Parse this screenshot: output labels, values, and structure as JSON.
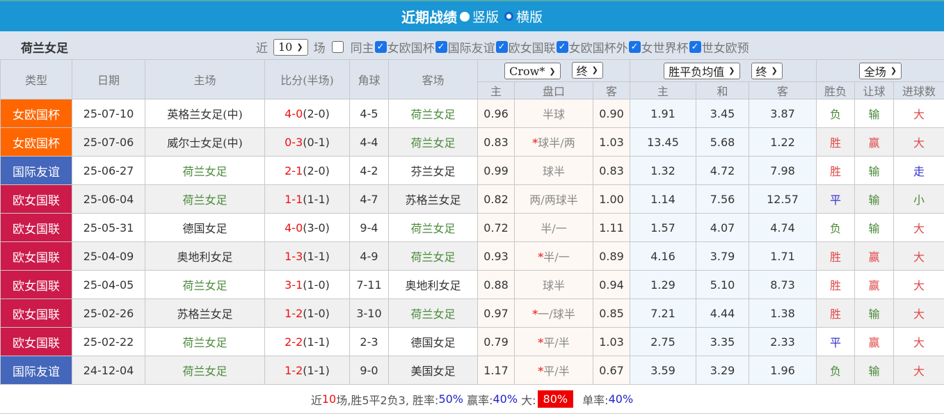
{
  "header": {
    "title": "近期战绩",
    "layout_vertical": "竖版",
    "layout_horizontal": "横版",
    "selected": "竖版"
  },
  "filter": {
    "team": "荷兰女足",
    "prefix": "近",
    "count": "10",
    "suffix": "场",
    "same_home": {
      "label": "同主",
      "checked": false
    },
    "competitions": [
      {
        "label": "女欧国杯",
        "checked": true
      },
      {
        "label": "国际友谊",
        "checked": true
      },
      {
        "label": "欧女国联",
        "checked": true
      },
      {
        "label": "女欧国杯外",
        "checked": true
      },
      {
        "label": "女世界杯",
        "checked": true
      },
      {
        "label": "世女欧预",
        "checked": true
      }
    ]
  },
  "columns": {
    "type": "类型",
    "date": "日期",
    "home": "主场",
    "score": "比分(半场)",
    "corner": "角球",
    "away": "客场",
    "asia_company": "Crow*",
    "asia_stage": "终",
    "euro_type": "胜平负均值",
    "euro_stage": "终",
    "period": "全场",
    "asia_home": "主",
    "asia_line": "盘口",
    "asia_away": "客",
    "euro_home": "主",
    "euro_draw": "和",
    "euro_away": "客",
    "result": "胜负",
    "handicap": "让球",
    "goals": "进球数"
  },
  "type_colors": {
    "女欧国杯": "#ff6600",
    "国际友谊": "#4466bb",
    "欧女国联": "#cc1a4a"
  },
  "result_colors": {
    "胜": "#e04848",
    "赢": "#e04848",
    "大": "#e04848",
    "负": "#4a8a3a",
    "输": "#4a8a3a",
    "小": "#4a8a3a",
    "平": "#3333cc",
    "走": "#3333cc"
  },
  "rows": [
    {
      "type": "女欧国杯",
      "date": "25-07-10",
      "home": "英格兰女足(中)",
      "score_ft": "4-0",
      "score_ht": "(2-0)",
      "corner": "4-5",
      "away": "荷兰女足",
      "a_home": "0.96",
      "a_star": "",
      "a_line": "半球",
      "a_away": "0.90",
      "e_home": "1.91",
      "e_draw": "3.45",
      "e_away": "3.87",
      "result": "负",
      "handicap": "输",
      "goals": "大"
    },
    {
      "type": "女欧国杯",
      "date": "25-07-06",
      "home": "威尔士女足(中)",
      "score_ft": "0-3",
      "score_ht": "(0-1)",
      "corner": "4-4",
      "away": "荷兰女足",
      "a_home": "0.83",
      "a_star": "*",
      "a_line": "球半/两",
      "a_away": "1.03",
      "e_home": "13.45",
      "e_draw": "5.68",
      "e_away": "1.22",
      "result": "胜",
      "handicap": "赢",
      "goals": "大"
    },
    {
      "type": "国际友谊",
      "date": "25-06-27",
      "home": "荷兰女足",
      "score_ft": "2-1",
      "score_ht": "(2-0)",
      "corner": "4-2",
      "away": "芬兰女足",
      "a_home": "0.99",
      "a_star": "",
      "a_line": "球半",
      "a_away": "0.83",
      "e_home": "1.32",
      "e_draw": "4.72",
      "e_away": "7.98",
      "result": "胜",
      "handicap": "输",
      "goals": "走"
    },
    {
      "type": "欧女国联",
      "date": "25-06-04",
      "home": "荷兰女足",
      "score_ft": "1-1",
      "score_ht": "(1-1)",
      "corner": "4-7",
      "away": "苏格兰女足",
      "a_home": "0.82",
      "a_star": "",
      "a_line": "两/两球半",
      "a_away": "1.00",
      "e_home": "1.14",
      "e_draw": "7.56",
      "e_away": "12.57",
      "result": "平",
      "handicap": "输",
      "goals": "小"
    },
    {
      "type": "欧女国联",
      "date": "25-05-31",
      "home": "德国女足",
      "score_ft": "4-0",
      "score_ht": "(3-0)",
      "corner": "9-4",
      "away": "荷兰女足",
      "a_home": "0.72",
      "a_star": "",
      "a_line": "半/一",
      "a_away": "1.11",
      "e_home": "1.57",
      "e_draw": "4.07",
      "e_away": "4.74",
      "result": "负",
      "handicap": "输",
      "goals": "大"
    },
    {
      "type": "欧女国联",
      "date": "25-04-09",
      "home": "奥地利女足",
      "score_ft": "1-3",
      "score_ht": "(1-1)",
      "corner": "4-9",
      "away": "荷兰女足",
      "a_home": "0.93",
      "a_star": "*",
      "a_line": "半/一",
      "a_away": "0.89",
      "e_home": "4.16",
      "e_draw": "3.79",
      "e_away": "1.71",
      "result": "胜",
      "handicap": "赢",
      "goals": "大"
    },
    {
      "type": "欧女国联",
      "date": "25-04-05",
      "home": "荷兰女足",
      "score_ft": "3-1",
      "score_ht": "(1-0)",
      "corner": "7-11",
      "away": "奥地利女足",
      "a_home": "0.88",
      "a_star": "",
      "a_line": "球半",
      "a_away": "0.94",
      "e_home": "1.29",
      "e_draw": "5.10",
      "e_away": "8.73",
      "result": "胜",
      "handicap": "赢",
      "goals": "大"
    },
    {
      "type": "欧女国联",
      "date": "25-02-26",
      "home": "苏格兰女足",
      "score_ft": "1-2",
      "score_ht": "(1-0)",
      "corner": "3-10",
      "away": "荷兰女足",
      "a_home": "0.97",
      "a_star": "*",
      "a_line": "一/球半",
      "a_away": "0.85",
      "e_home": "7.21",
      "e_draw": "4.44",
      "e_away": "1.38",
      "result": "胜",
      "handicap": "输",
      "goals": "大"
    },
    {
      "type": "欧女国联",
      "date": "25-02-22",
      "home": "荷兰女足",
      "score_ft": "2-2",
      "score_ht": "(1-1)",
      "corner": "2-3",
      "away": "德国女足",
      "a_home": "0.79",
      "a_star": "*",
      "a_line": "平/半",
      "a_away": "1.03",
      "e_home": "2.75",
      "e_draw": "3.35",
      "e_away": "2.33",
      "result": "平",
      "handicap": "赢",
      "goals": "大"
    },
    {
      "type": "国际友谊",
      "date": "24-12-04",
      "home": "荷兰女足",
      "score_ft": "1-2",
      "score_ht": "(1-1)",
      "corner": "9-0",
      "away": "美国女足",
      "a_home": "1.17",
      "a_star": "*",
      "a_line": "平/半",
      "a_away": "0.67",
      "e_home": "3.59",
      "e_draw": "3.29",
      "e_away": "1.96",
      "result": "负",
      "handicap": "输",
      "goals": "大"
    }
  ],
  "summary": {
    "p1": "近",
    "games": "10",
    "p2": "场,胜5平2负3, 胜率:",
    "win_rate": "50%",
    "p3": " 赢率:",
    "cover_rate": "40%",
    "p4": " 大:",
    "over_rate": "80%",
    "p5": " 单率:",
    "odd_rate": "40%"
  }
}
